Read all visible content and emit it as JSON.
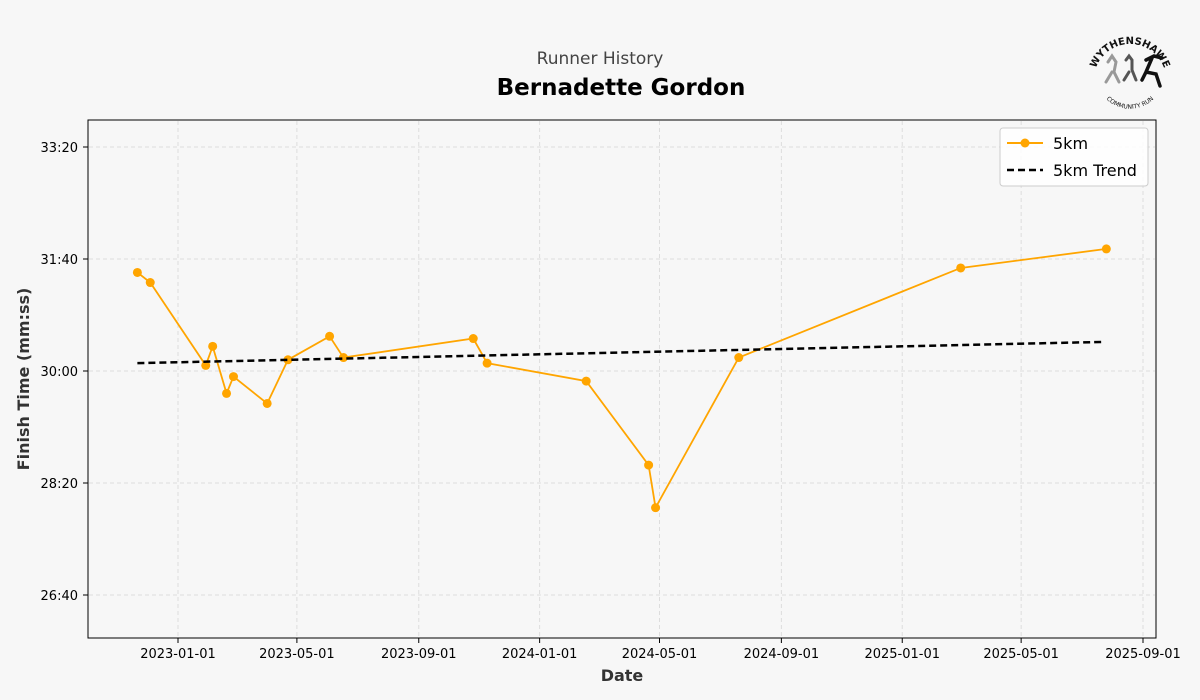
{
  "chart_data": {
    "type": "line",
    "subtitle": "Runner History",
    "title": "Bernadette Gordon",
    "xlabel": "Date",
    "ylabel": "Finish Time (mm:ss)",
    "x_ticks": [
      "2023-01-01",
      "2023-05-01",
      "2023-09-01",
      "2024-01-01",
      "2024-05-01",
      "2024-09-01",
      "2025-01-01",
      "2025-05-01",
      "2025-09-01"
    ],
    "y_ticks": [
      "26:40",
      "28:20",
      "30:00",
      "31:40",
      "33:20"
    ],
    "y_tick_seconds": [
      1600,
      1700,
      1800,
      1900,
      2000
    ],
    "xlim": [
      "2022-10-29",
      "2025-09-14"
    ],
    "ylim_seconds": [
      1562,
      2023
    ],
    "grid": true,
    "legend_position": "top-right",
    "series": [
      {
        "name": "5km",
        "color": "#FFA500",
        "style": "line-marker",
        "x": [
          "2022-11-21",
          "2022-12-04",
          "2023-01-29",
          "2023-02-05",
          "2023-02-19",
          "2023-02-26",
          "2023-04-01",
          "2023-04-22",
          "2023-06-03",
          "2023-06-17",
          "2023-10-26",
          "2023-11-09",
          "2024-02-17",
          "2024-04-20",
          "2024-04-27",
          "2024-07-20",
          "2025-03-01",
          "2025-07-26"
        ],
        "y_seconds": [
          1888,
          1879,
          1805,
          1822,
          1780,
          1795,
          1771,
          1810,
          1831,
          1812,
          1829,
          1807,
          1791,
          1716,
          1678,
          1812,
          1892,
          1909
        ]
      },
      {
        "name": "5km Trend",
        "color": "#000000",
        "style": "dashed",
        "x": [
          "2022-11-21",
          "2025-07-24"
        ],
        "y_seconds": [
          1807,
          1826
        ]
      }
    ]
  },
  "logo": {
    "top_text": "WYTHENSHAWE",
    "bottom_text": "COMMUNITY RUN"
  }
}
